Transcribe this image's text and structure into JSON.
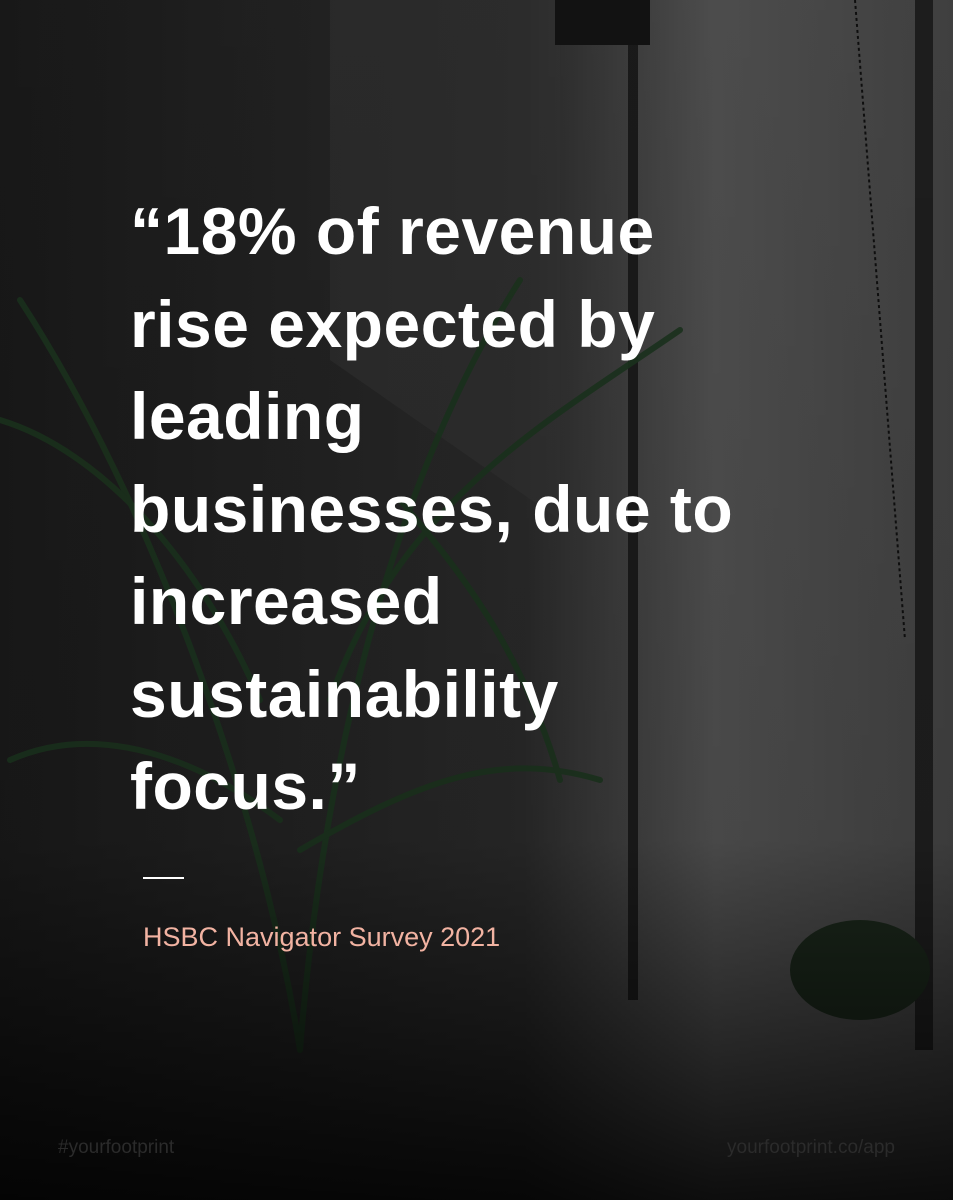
{
  "quote": {
    "lines": [
      "“18% of revenue",
      "rise expected by",
      "leading",
      "businesses, due to",
      "increased",
      "sustainability",
      "focus.”"
    ]
  },
  "source": "HSBC Navigator Survey 2021",
  "footer": {
    "hashtag": "#yourfootprint",
    "url": "yourfootprint.co/app"
  }
}
